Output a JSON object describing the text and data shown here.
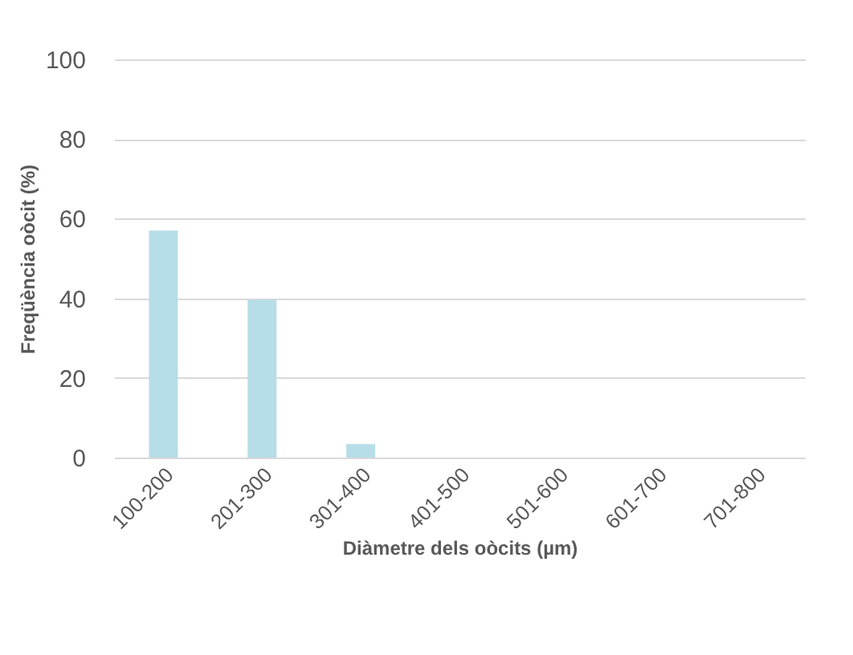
{
  "chart_data": {
    "type": "bar",
    "xlabel": "Diàmetre dels oòcits (µm)",
    "ylabel": "Freqüència oòcit (%)",
    "categories": [
      "100-200",
      "201-300",
      "301-400",
      "401-500",
      "501-600",
      "601-700",
      "701-800"
    ],
    "values": [
      57,
      39.6,
      3.4,
      0,
      0,
      0,
      0
    ],
    "color": "#b7dde8",
    "ylim": [
      0,
      100
    ],
    "yticks": [
      0,
      20,
      40,
      60,
      80,
      100
    ],
    "grid": "y"
  }
}
